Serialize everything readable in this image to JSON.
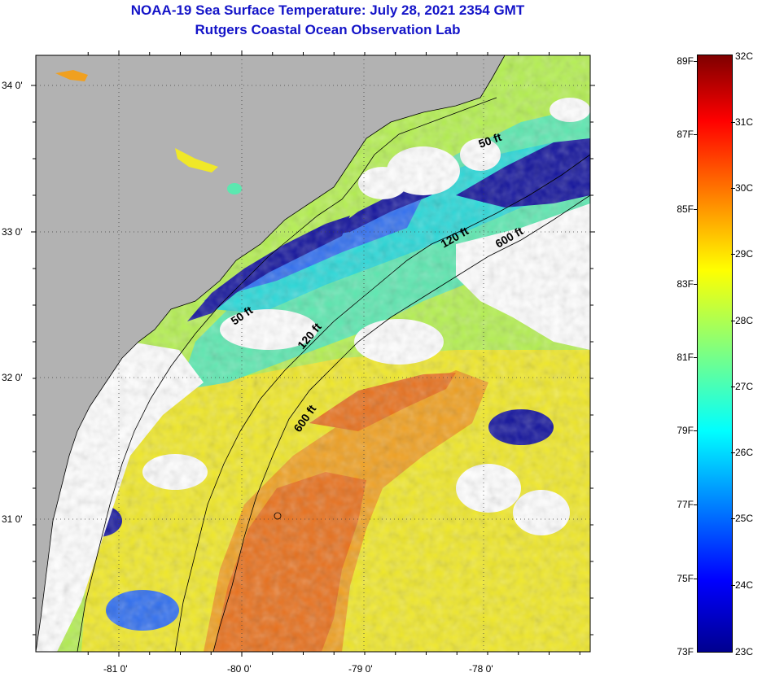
{
  "title": {
    "line1": "NOAA-19 Sea Surface Temperature:  July 28, 2021 2354 GMT",
    "line2": "Rutgers Coastal Ocean Observation Lab"
  },
  "map": {
    "lat_labels": [
      "34 0'",
      "33 0'",
      "32 0'",
      "31 0'"
    ],
    "lon_labels": [
      "-81 0'",
      "-80 0'",
      "-79 0'",
      "-78 0'"
    ],
    "contour_labels": [
      "50 ft",
      "120 ft",
      "600 ft",
      "50 ft",
      "120 ft",
      "600 ft"
    ],
    "colors": {
      "land": "#b2b2b2",
      "cloud": "#ffffff",
      "dark_blue": "#12129c",
      "blue": "#2f6ef0",
      "cyan": "#28d8d8",
      "aqua_green": "#5ce8b0",
      "green_yellow": "#b4f050",
      "yellow": "#f0e828",
      "orange": "#f0a020",
      "dark_orange": "#e8701c"
    }
  },
  "colorbar": {
    "fahrenheit": [
      "89F",
      "87F",
      "85F",
      "83F",
      "81F",
      "79F",
      "77F",
      "75F",
      "73F"
    ],
    "celsius": [
      "32C",
      "31C",
      "30C",
      "29C",
      "28C",
      "27C",
      "26C",
      "25C",
      "24C",
      "23C"
    ],
    "colormap": "jet",
    "range_c": [
      23,
      32
    ]
  }
}
